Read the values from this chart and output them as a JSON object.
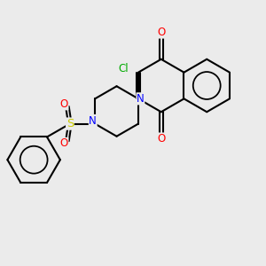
{
  "bg_color": "#ebebeb",
  "bond_color": "#000000",
  "N_color": "#0000ff",
  "O_color": "#ff0000",
  "S_color": "#cccc00",
  "Cl_color": "#00aa00",
  "lw": 1.5,
  "fs": 8.5,
  "xlim": [
    0,
    10
  ],
  "ylim": [
    0,
    10
  ]
}
